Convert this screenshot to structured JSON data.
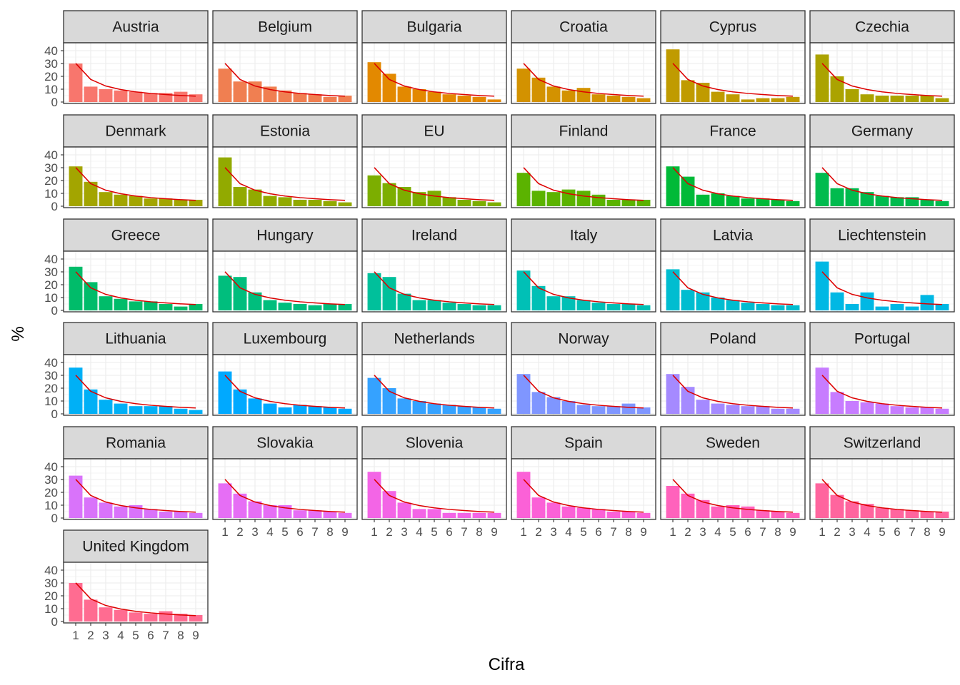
{
  "chart_data": {
    "type": "bar",
    "xlabel": "Cifra",
    "ylabel": "%",
    "categories": [
      "1",
      "2",
      "3",
      "4",
      "5",
      "6",
      "7",
      "8",
      "9"
    ],
    "ylim": [
      0,
      45
    ],
    "y_ticks": [
      0,
      10,
      20,
      30,
      40
    ],
    "grid": true,
    "legend": "none",
    "reference_series": {
      "values": [
        30.1,
        17.6,
        12.5,
        9.7,
        7.9,
        6.7,
        5.8,
        5.1,
        4.6
      ],
      "color": "#dd0000"
    },
    "panels": [
      {
        "name": "Austria",
        "color": "#F8766D",
        "values": [
          30,
          12,
          10,
          9,
          8,
          7,
          7,
          8,
          6
        ]
      },
      {
        "name": "Belgium",
        "color": "#F07F51",
        "values": [
          26,
          16,
          16,
          12,
          9,
          7,
          6,
          4,
          5
        ]
      },
      {
        "name": "Bulgaria",
        "color": "#E38900",
        "values": [
          31,
          22,
          12,
          10,
          8,
          6,
          5,
          4,
          2
        ]
      },
      {
        "name": "Croatia",
        "color": "#D39200",
        "values": [
          26,
          19,
          12,
          9,
          11,
          6,
          5,
          4,
          3
        ]
      },
      {
        "name": "Cyprus",
        "color": "#C09B00",
        "values": [
          41,
          17,
          15,
          8,
          6,
          2,
          3,
          3,
          4
        ]
      },
      {
        "name": "Czechia",
        "color": "#ABA300",
        "values": [
          37,
          20,
          10,
          6,
          5,
          5,
          5,
          5,
          3
        ]
      },
      {
        "name": "Denmark",
        "color": "#A3A500",
        "values": [
          31,
          19,
          11,
          9,
          8,
          6,
          6,
          5,
          5
        ]
      },
      {
        "name": "Estonia",
        "color": "#92AA00",
        "values": [
          38,
          15,
          13,
          8,
          7,
          5,
          5,
          4,
          3
        ]
      },
      {
        "name": "EU",
        "color": "#7CAE00",
        "values": [
          24,
          18,
          15,
          11,
          12,
          7,
          5,
          4,
          3
        ]
      },
      {
        "name": "Finland",
        "color": "#5BB300",
        "values": [
          26,
          12,
          11,
          13,
          12,
          9,
          5,
          5,
          5
        ]
      },
      {
        "name": "France",
        "color": "#00BA38",
        "values": [
          31,
          23,
          9,
          10,
          8,
          6,
          6,
          5,
          4
        ]
      },
      {
        "name": "Germany",
        "color": "#00BB4E",
        "values": [
          26,
          14,
          14,
          11,
          8,
          7,
          7,
          5,
          4
        ]
      },
      {
        "name": "Greece",
        "color": "#00BC6A",
        "values": [
          34,
          22,
          11,
          9,
          7,
          7,
          5,
          3,
          5
        ]
      },
      {
        "name": "Hungary",
        "color": "#00BE7D",
        "values": [
          27,
          26,
          14,
          8,
          6,
          5,
          4,
          5,
          5
        ]
      },
      {
        "name": "Ireland",
        "color": "#00C09B",
        "values": [
          29,
          26,
          13,
          8,
          8,
          6,
          5,
          4,
          4
        ]
      },
      {
        "name": "Italy",
        "color": "#00C0B6",
        "values": [
          31,
          19,
          11,
          11,
          8,
          6,
          5,
          5,
          4
        ]
      },
      {
        "name": "Latvia",
        "color": "#00BDD0",
        "values": [
          32,
          16,
          14,
          10,
          8,
          6,
          5,
          4,
          4
        ]
      },
      {
        "name": "Liechtenstein",
        "color": "#00B8E4",
        "values": [
          38,
          14,
          5,
          14,
          3,
          5,
          3,
          12,
          5
        ]
      },
      {
        "name": "Lithuania",
        "color": "#00B0F6",
        "values": [
          36,
          19,
          11,
          8,
          6,
          6,
          6,
          4,
          3
        ]
      },
      {
        "name": "Luxembourg",
        "color": "#00A9FF",
        "values": [
          33,
          19,
          12,
          8,
          5,
          7,
          6,
          5,
          4
        ]
      },
      {
        "name": "Netherlands",
        "color": "#35A2FF",
        "values": [
          28,
          20,
          12,
          10,
          8,
          7,
          6,
          5,
          4
        ]
      },
      {
        "name": "Norway",
        "color": "#7F96FF",
        "values": [
          31,
          17,
          13,
          10,
          7,
          6,
          6,
          8,
          5
        ]
      },
      {
        "name": "Poland",
        "color": "#A58AFF",
        "values": [
          31,
          21,
          11,
          8,
          7,
          6,
          6,
          4,
          4
        ]
      },
      {
        "name": "Portugal",
        "color": "#C77CFF",
        "values": [
          36,
          17,
          10,
          9,
          8,
          6,
          5,
          5,
          4
        ]
      },
      {
        "name": "Romania",
        "color": "#D973FA",
        "values": [
          33,
          16,
          12,
          9,
          10,
          7,
          5,
          5,
          4
        ]
      },
      {
        "name": "Slovakia",
        "color": "#E66EF5",
        "values": [
          27,
          19,
          13,
          10,
          10,
          6,
          6,
          5,
          4
        ]
      },
      {
        "name": "Slovenia",
        "color": "#F365E6",
        "values": [
          36,
          21,
          12,
          7,
          7,
          4,
          4,
          4,
          4
        ]
      },
      {
        "name": "Spain",
        "color": "#FB61D7",
        "values": [
          36,
          16,
          12,
          9,
          8,
          7,
          5,
          5,
          4
        ]
      },
      {
        "name": "Sweden",
        "color": "#FF62BC",
        "values": [
          25,
          19,
          14,
          9,
          10,
          9,
          6,
          5,
          4
        ]
      },
      {
        "name": "Switzerland",
        "color": "#FF659E",
        "values": [
          27,
          18,
          13,
          11,
          8,
          7,
          6,
          5,
          5
        ]
      },
      {
        "name": "United Kingdom",
        "color": "#FF6C91",
        "values": [
          30,
          17,
          11,
          9,
          7,
          6,
          8,
          6,
          5
        ]
      }
    ]
  }
}
